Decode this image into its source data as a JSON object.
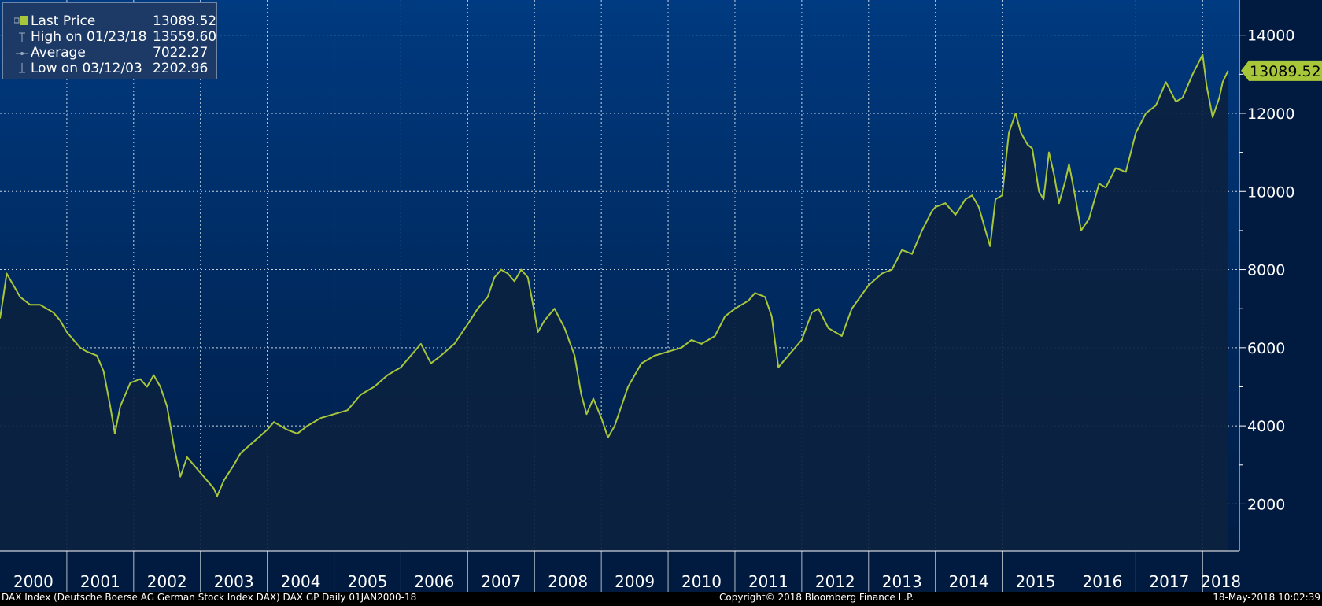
{
  "chart_data": {
    "type": "area",
    "title": "",
    "xlabel": "",
    "ylabel": "",
    "x_tick_labels": [
      "2000",
      "2001",
      "2002",
      "2003",
      "2004",
      "2005",
      "2006",
      "2007",
      "2008",
      "2009",
      "2010",
      "2011",
      "2012",
      "2013",
      "2014",
      "2015",
      "2016",
      "2017",
      "2018"
    ],
    "y_ticks": [
      2000,
      4000,
      6000,
      8000,
      10000,
      12000,
      14000
    ],
    "y_tick_labels": [
      "2000",
      "4000",
      "6000",
      "8000",
      "10000",
      "12000",
      "14000"
    ],
    "ylim": [
      800,
      14900
    ],
    "xlim": [
      2000.0,
      2018.55
    ],
    "grid": true,
    "legend_position": "top-left",
    "series": [
      {
        "name": "Last Price",
        "color": "#a8c63a",
        "x": [
          2000.0,
          2000.05,
          2000.1,
          2000.2,
          2000.3,
          2000.45,
          2000.6,
          2000.8,
          2000.9,
          2001.0,
          2001.1,
          2001.2,
          2001.3,
          2001.45,
          2001.55,
          2001.65,
          2001.72,
          2001.8,
          2001.95,
          2002.1,
          2002.2,
          2002.3,
          2002.4,
          2002.5,
          2002.6,
          2002.7,
          2002.8,
          2002.9,
          2003.0,
          2003.1,
          2003.2,
          2003.25,
          2003.35,
          2003.5,
          2003.6,
          2003.8,
          2004.0,
          2004.1,
          2004.3,
          2004.45,
          2004.6,
          2004.8,
          2005.0,
          2005.2,
          2005.4,
          2005.6,
          2005.8,
          2006.0,
          2006.2,
          2006.3,
          2006.45,
          2006.6,
          2006.8,
          2007.0,
          2007.15,
          2007.3,
          2007.4,
          2007.5,
          2007.6,
          2007.7,
          2007.8,
          2007.9,
          2008.0,
          2008.05,
          2008.15,
          2008.3,
          2008.45,
          2008.6,
          2008.7,
          2008.78,
          2008.88,
          2009.0,
          2009.1,
          2009.2,
          2009.3,
          2009.4,
          2009.5,
          2009.6,
          2009.8,
          2010.0,
          2010.2,
          2010.35,
          2010.5,
          2010.7,
          2010.85,
          2011.0,
          2011.1,
          2011.2,
          2011.3,
          2011.45,
          2011.55,
          2011.65,
          2011.75,
          2011.85,
          2012.0,
          2012.15,
          2012.25,
          2012.4,
          2012.5,
          2012.6,
          2012.75,
          2013.0,
          2013.2,
          2013.35,
          2013.5,
          2013.65,
          2013.8,
          2013.95,
          2014.0,
          2014.15,
          2014.3,
          2014.45,
          2014.55,
          2014.65,
          2014.75,
          2014.82,
          2014.9,
          2015.0,
          2015.1,
          2015.2,
          2015.28,
          2015.38,
          2015.45,
          2015.55,
          2015.62,
          2015.7,
          2015.78,
          2015.85,
          2015.95,
          2016.0,
          2016.1,
          2016.18,
          2016.3,
          2016.45,
          2016.55,
          2016.7,
          2016.85,
          2017.0,
          2017.15,
          2017.3,
          2017.45,
          2017.6,
          2017.7,
          2017.85,
          2018.0,
          2018.06,
          2018.15,
          2018.25,
          2018.3,
          2018.38
        ],
        "y": [
          6750,
          7300,
          7900,
          7600,
          7300,
          7100,
          7100,
          6900,
          6700,
          6400,
          6200,
          6000,
          5900,
          5800,
          5400,
          4500,
          3800,
          4500,
          5100,
          5200,
          5000,
          5300,
          5000,
          4500,
          3500,
          2700,
          3200,
          3000,
          2800,
          2600,
          2400,
          2200,
          2600,
          3000,
          3300,
          3600,
          3900,
          4100,
          3900,
          3800,
          4000,
          4200,
          4300,
          4400,
          4800,
          5000,
          5300,
          5500,
          5900,
          6100,
          5600,
          5800,
          6100,
          6600,
          7000,
          7300,
          7800,
          8000,
          7900,
          7700,
          8000,
          7800,
          6900,
          6400,
          6700,
          7000,
          6500,
          5800,
          4800,
          4300,
          4700,
          4200,
          3700,
          4000,
          4500,
          5000,
          5300,
          5600,
          5800,
          5900,
          6000,
          6200,
          6100,
          6300,
          6800,
          7000,
          7100,
          7200,
          7400,
          7300,
          6800,
          5500,
          5700,
          5900,
          6200,
          6900,
          7000,
          6500,
          6400,
          6300,
          7000,
          7600,
          7900,
          8000,
          8500,
          8400,
          9000,
          9500,
          9600,
          9700,
          9400,
          9800,
          9900,
          9600,
          9000,
          8600,
          9800,
          9900,
          11500,
          12000,
          11500,
          11200,
          11100,
          10000,
          9800,
          11000,
          10400,
          9700,
          10300,
          10700,
          9800,
          9000,
          9300,
          10200,
          10100,
          10600,
          10500,
          11500,
          12000,
          12200,
          12800,
          12300,
          12400,
          13000,
          13500,
          12700,
          11900,
          12400,
          12800,
          13089.52
        ]
      }
    ],
    "current_value_label": "13089.52"
  },
  "legend": {
    "rows": [
      {
        "label": "Last Price",
        "value": "13089.52",
        "marker": "square"
      },
      {
        "label": "High on 01/23/18",
        "value": "13559.60",
        "marker": "high"
      },
      {
        "label": "Average",
        "value": "7022.27",
        "marker": "avg"
      },
      {
        "label": "Low on 03/12/03",
        "value": "2202.96",
        "marker": "low"
      }
    ]
  },
  "footer": {
    "left": "DAX Index (Deutsche Boerse AG German Stock Index DAX) DAX GP  Daily 01JAN2000-18",
    "center": "Copyright© 2018 Bloomberg Finance L.P.",
    "right": "18-May-2018 10:02:39"
  },
  "colors": {
    "background_top": "#003a80",
    "background_bottom": "#001a3c",
    "fill": "#0b2240",
    "line": "#a8c63a",
    "grid": "#ffffff",
    "text": "#ffffff",
    "price_tag": "#a8c63a"
  }
}
